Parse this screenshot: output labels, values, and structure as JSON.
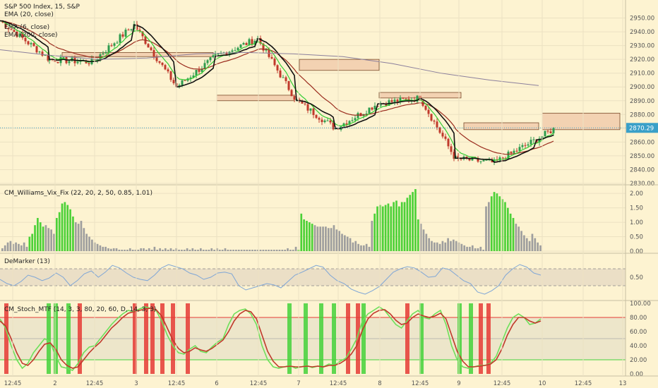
{
  "chart_data": [
    {
      "type": "line",
      "panel": "price",
      "title": "S&P 500 Index, 15, S&P",
      "legend": [
        "EMA (20, close)",
        "EMA (6, close)",
        "EMA (200, close)"
      ],
      "ylim": [
        2830,
        2960
      ],
      "yticks": [
        "2950.00",
        "2940.00",
        "2930.00",
        "2920.00",
        "2910.00",
        "2900.00",
        "2890.00",
        "2880.00",
        "2870.00",
        "2860.00",
        "2850.00",
        "2840.00",
        "2830.00"
      ],
      "last_price": "2870.29",
      "x_labels": [
        "12:45",
        "2",
        "12:45",
        "3",
        "12:45",
        "6",
        "12:45",
        "7",
        "12:45",
        "8",
        "12:45",
        "9",
        "12:45",
        "10",
        "12:45",
        "13"
      ],
      "session_close": [
        2948,
        2920,
        2918,
        2945,
        2900,
        2922,
        2935,
        2890,
        2870,
        2888,
        2892,
        2848,
        2845,
        2862,
        2870
      ],
      "ema200": [
        2927,
        2923,
        2920,
        2921,
        2924,
        2925,
        2924,
        2922,
        2917,
        2910,
        2905,
        2901
      ],
      "supply_demand_zones": [
        "2922-2925",
        "2890-2894",
        "2912-2920",
        "2892-2896",
        "2869-2874",
        "2869-2881"
      ]
    },
    {
      "type": "bar",
      "panel": "williams_vix_fix",
      "title": "CM_Williams_Vix_Fix (22, 20, 2, 50, 0.85, 1.01)",
      "ylim": [
        0,
        2.2
      ],
      "yticks": [
        "2.00",
        "1.50",
        "1.00",
        "0.50",
        "0.00"
      ],
      "values": [
        0.1,
        0.2,
        0.3,
        0.35,
        0.25,
        0.3,
        0.25,
        0.2,
        0.3,
        0.15,
        0.5,
        0.6,
        0.9,
        1.15,
        1.0,
        0.85,
        0.9,
        0.8,
        0.75,
        0.6,
        1.15,
        1.35,
        1.65,
        1.7,
        1.6,
        1.45,
        1.2,
        1.0,
        0.95,
        1.05,
        0.8,
        0.6,
        0.5,
        0.4,
        0.3,
        0.25,
        0.2,
        0.15,
        0.15,
        0.1,
        0.08,
        0.1,
        0.1,
        0.05,
        0.05,
        0.05,
        0.05,
        0.1,
        0.05,
        0.05,
        0.05,
        0.1,
        0.1,
        0.05,
        0.1,
        0.05,
        0.15,
        0.05,
        0.1,
        0.05,
        0.1,
        0.05,
        0.1,
        0.05,
        0.1,
        0.05,
        0.05,
        0.05,
        0.1,
        0.05,
        0.1,
        0.05,
        0.05,
        0.1,
        0.05,
        0.05,
        0.05,
        0.1,
        0.05,
        0.1,
        0.05,
        0.05,
        0.1,
        0.05,
        0.05,
        0.05,
        0.05,
        0.05,
        0.05,
        0.05,
        0.05,
        0.05,
        0.05,
        0.05,
        0.05,
        0.05,
        0.05,
        0.05,
        0.05,
        0.05,
        0.05,
        0.05,
        0.05,
        0.05,
        0.05,
        0.1,
        0.05,
        0.05,
        0.15,
        0.05,
        1.3,
        1.1,
        1.05,
        1.0,
        0.95,
        0.9,
        0.85,
        0.85,
        0.85,
        0.85,
        0.8,
        0.8,
        0.9,
        0.75,
        0.7,
        0.6,
        0.55,
        0.5,
        0.45,
        0.3,
        0.35,
        0.25,
        0.2,
        0.2,
        0.25,
        0.15,
        1.05,
        1.3,
        1.55,
        1.6,
        1.55,
        1.6,
        1.65,
        1.55,
        1.7,
        1.75,
        1.55,
        1.7,
        1.7,
        1.85,
        1.95,
        2.05,
        2.15,
        1.1,
        0.95,
        0.75,
        0.6,
        0.45,
        0.35,
        0.3,
        0.3,
        0.25,
        0.35,
        0.3,
        0.45,
        0.35,
        0.4,
        0.35,
        0.3,
        0.25,
        0.2,
        0.15,
        0.15,
        0.2,
        0.1,
        0.1,
        0.15,
        0.05,
        1.55,
        1.7,
        1.9,
        2.05,
        2.0,
        1.9,
        1.8,
        1.7,
        1.5,
        1.3,
        1.15,
        0.95,
        0.85,
        0.7,
        0.55,
        0.45,
        0.35,
        0.6,
        0.45,
        0.3,
        0.2
      ],
      "highlight": [
        0,
        0,
        0,
        0,
        0,
        0,
        0,
        0,
        0,
        0,
        1,
        1,
        1,
        1,
        1,
        1,
        0,
        0,
        0,
        0,
        1,
        1,
        1,
        1,
        1,
        1,
        1,
        0,
        0,
        0,
        0,
        0,
        0,
        0,
        0,
        0,
        0,
        0,
        0,
        0,
        0,
        0,
        0,
        0,
        0,
        0,
        0,
        0,
        0,
        0,
        0,
        0,
        0,
        0,
        0,
        0,
        0,
        0,
        0,
        0,
        0,
        0,
        0,
        0,
        0,
        0,
        0,
        0,
        0,
        0,
        0,
        0,
        0,
        0,
        0,
        0,
        0,
        0,
        0,
        0,
        0,
        0,
        0,
        0,
        0,
        0,
        0,
        0,
        0,
        0,
        0,
        0,
        0,
        0,
        0,
        0,
        0,
        0,
        0,
        0,
        0,
        0,
        0,
        0,
        0,
        0,
        0,
        0,
        0,
        1,
        1,
        1,
        1,
        1,
        1,
        0,
        0,
        0,
        0,
        0,
        0,
        0,
        0,
        0,
        0,
        0,
        0,
        0,
        0,
        0,
        0,
        0,
        0,
        0,
        0,
        0,
        0,
        1,
        1,
        1,
        1,
        1,
        1,
        1,
        1,
        1,
        1,
        1,
        1,
        1,
        1,
        1,
        1,
        1,
        0,
        0,
        0,
        0,
        0,
        0,
        0,
        0,
        0,
        0,
        0,
        0,
        0,
        0,
        0,
        0,
        0,
        0,
        0,
        0,
        0,
        0,
        0,
        0,
        0,
        0,
        1,
        1,
        1,
        1,
        1,
        1,
        1,
        1,
        1,
        0,
        0,
        0,
        0,
        0,
        0,
        0,
        0,
        0,
        0,
        0,
        0
      ]
    },
    {
      "type": "line",
      "panel": "demarker",
      "title": "DeMarker (13)",
      "ylim": [
        0,
        1
      ],
      "yticks": [
        "0.50"
      ],
      "bands": [
        0.3,
        0.7
      ],
      "values": [
        0.45,
        0.35,
        0.3,
        0.4,
        0.55,
        0.5,
        0.42,
        0.48,
        0.6,
        0.5,
        0.3,
        0.42,
        0.58,
        0.65,
        0.5,
        0.62,
        0.78,
        0.72,
        0.6,
        0.5,
        0.45,
        0.42,
        0.55,
        0.72,
        0.8,
        0.75,
        0.7,
        0.6,
        0.55,
        0.45,
        0.5,
        0.6,
        0.62,
        0.58,
        0.3,
        0.2,
        0.25,
        0.3,
        0.35,
        0.32,
        0.25,
        0.4,
        0.55,
        0.62,
        0.7,
        0.78,
        0.74,
        0.55,
        0.42,
        0.35,
        0.22,
        0.15,
        0.1,
        0.18,
        0.28,
        0.45,
        0.62,
        0.7,
        0.75,
        0.72,
        0.62,
        0.5,
        0.52,
        0.72,
        0.68,
        0.55,
        0.42,
        0.35,
        0.15,
        0.1,
        0.18,
        0.3,
        0.55,
        0.7,
        0.8,
        0.74,
        0.6,
        0.55
      ]
    },
    {
      "type": "line",
      "panel": "stochastic",
      "title": "CM_Stoch_MTF (14, 3, 3, 80, 20, 60, D, 14, 3, 3)",
      "ylim": [
        0,
        100
      ],
      "yticks": [
        "100.00",
        "80.00",
        "60.00",
        "40.00",
        "20.00",
        "0.00"
      ],
      "bands": [
        80,
        20,
        50
      ],
      "k": [
        78,
        65,
        40,
        20,
        8,
        15,
        30,
        40,
        50,
        45,
        25,
        10,
        8,
        5,
        15,
        30,
        38,
        40,
        50,
        60,
        70,
        78,
        85,
        90,
        88,
        92,
        95,
        93,
        90,
        75,
        55,
        40,
        30,
        28,
        35,
        40,
        32,
        30,
        38,
        45,
        50,
        70,
        85,
        90,
        92,
        85,
        70,
        40,
        20,
        10,
        8,
        10,
        12,
        8,
        10,
        12,
        9,
        11,
        10,
        14,
        12,
        18,
        22,
        35,
        50,
        75,
        85,
        90,
        95,
        90,
        80,
        70,
        65,
        75,
        85,
        90,
        80,
        78,
        85,
        90,
        70,
        40,
        20,
        10,
        8,
        10,
        12,
        12,
        15,
        25,
        45,
        65,
        80,
        85,
        80,
        70,
        72,
        78
      ],
      "d": [
        75,
        68,
        50,
        30,
        15,
        12,
        20,
        32,
        42,
        44,
        35,
        20,
        12,
        8,
        10,
        20,
        30,
        38,
        45,
        55,
        65,
        72,
        80,
        86,
        88,
        90,
        92,
        93,
        91,
        82,
        65,
        48,
        36,
        30,
        32,
        37,
        34,
        32,
        36,
        42,
        48,
        60,
        75,
        85,
        90,
        88,
        78,
        55,
        32,
        18,
        10,
        10,
        11,
        10,
        10,
        11,
        10,
        11,
        10,
        12,
        12,
        15,
        20,
        28,
        40,
        62,
        78,
        86,
        90,
        91,
        85,
        76,
        70,
        72,
        80,
        85,
        82,
        80,
        82,
        86,
        78,
        55,
        32,
        18,
        10,
        10,
        11,
        12,
        14,
        20,
        35,
        55,
        70,
        80,
        80,
        75,
        72,
        75
      ],
      "signal_bars": [
        "red",
        "green",
        "green",
        "green",
        "red",
        "red",
        "red",
        "red",
        "red",
        "red",
        "red",
        "green",
        "green",
        "green",
        "green",
        "red",
        "red",
        "green",
        "red",
        "green",
        "green",
        "green",
        "red",
        "red"
      ]
    }
  ]
}
